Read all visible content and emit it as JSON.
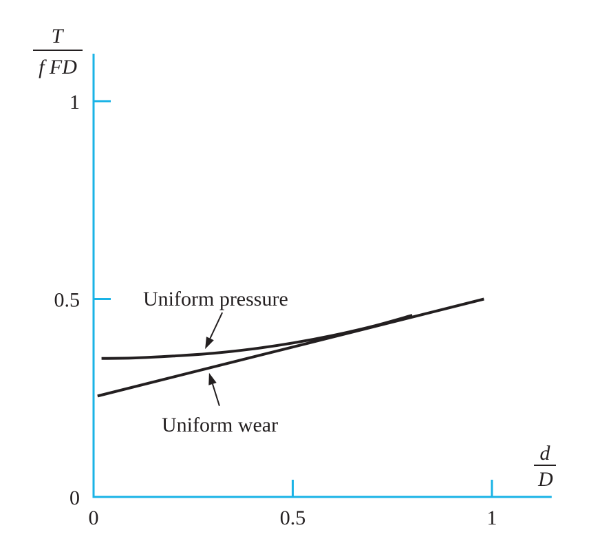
{
  "chart_data": {
    "type": "line",
    "ylabel": {
      "numerator": "T",
      "denominator": "f FD"
    },
    "xlabel": {
      "numerator": "d",
      "denominator": "D"
    },
    "xlim": [
      0,
      1.15
    ],
    "ylim": [
      0,
      1.12
    ],
    "x_ticks": [
      {
        "value": 0,
        "label": "0"
      },
      {
        "value": 0.5,
        "label": "0.5"
      },
      {
        "value": 1,
        "label": "1"
      }
    ],
    "y_ticks": [
      {
        "value": 0,
        "label": "0"
      },
      {
        "value": 0.5,
        "label": "0.5"
      },
      {
        "value": 1,
        "label": "1"
      }
    ],
    "grid": false,
    "series": [
      {
        "name": "Uniform pressure",
        "x": [
          0.02,
          0.1,
          0.2,
          0.3,
          0.4,
          0.5,
          0.6,
          0.7,
          0.8
        ],
        "y": [
          0.35,
          0.351,
          0.356,
          0.363,
          0.374,
          0.389,
          0.408,
          0.431,
          0.459
        ]
      },
      {
        "name": "Uniform wear",
        "x": [
          0.01,
          0.98
        ],
        "y": [
          0.255,
          0.5
        ]
      }
    ],
    "annotations": [
      {
        "text": "Uniform pressure",
        "series": "Uniform pressure",
        "at_x": 0.28
      },
      {
        "text": "Uniform wear",
        "series": "Uniform wear",
        "at_x": 0.29
      }
    ]
  }
}
